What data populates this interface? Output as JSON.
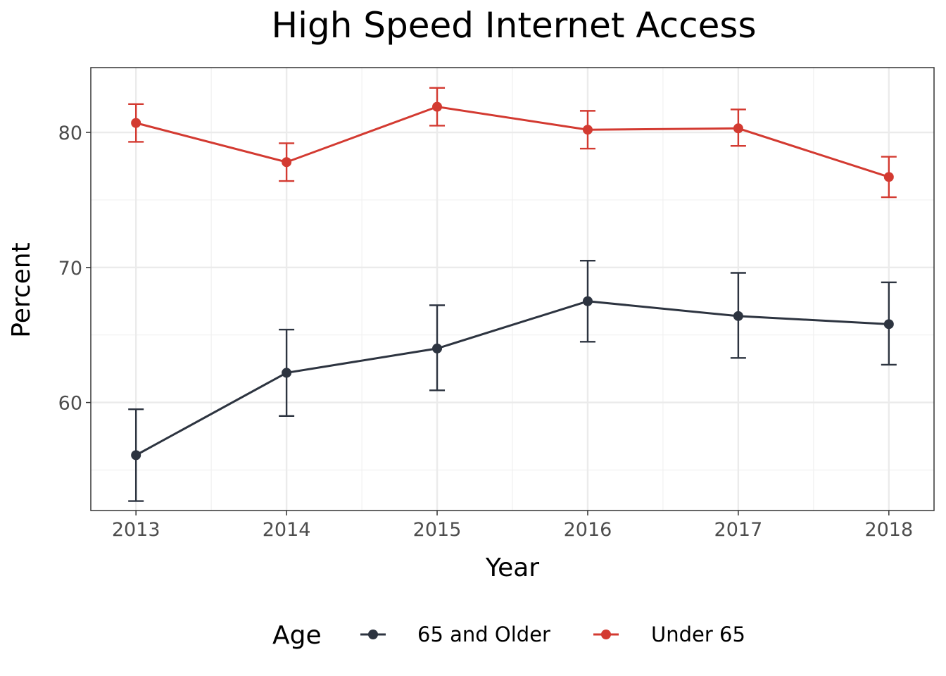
{
  "chart_data": {
    "type": "line",
    "title": "High Speed Internet Access",
    "xlabel": "Year",
    "ylabel": "Percent",
    "x": [
      2013,
      2014,
      2015,
      2016,
      2017,
      2018
    ],
    "x_tick_labels": [
      "2013",
      "2014",
      "2015",
      "2016",
      "2017",
      "2018"
    ],
    "y_ticks": [
      60,
      70,
      80
    ],
    "y_tick_labels": [
      "60",
      "70",
      "80"
    ],
    "xlim": [
      2012.7,
      2018.3
    ],
    "ylim": [
      52.0,
      84.8
    ],
    "grid": true,
    "legend": {
      "title": "Age",
      "placement": "bottom"
    },
    "series": [
      {
        "name": "65 and Older",
        "color": "#2d3440",
        "values": [
          56.1,
          62.2,
          64.0,
          67.5,
          66.4,
          65.8
        ],
        "error_low": [
          52.7,
          59.0,
          60.9,
          64.5,
          63.3,
          62.8
        ],
        "error_high": [
          59.5,
          65.4,
          67.2,
          70.5,
          69.6,
          68.9
        ]
      },
      {
        "name": "Under 65",
        "color": "#d33a31",
        "values": [
          80.7,
          77.8,
          81.9,
          80.2,
          80.3,
          76.7
        ],
        "error_low": [
          79.3,
          76.4,
          80.5,
          78.8,
          79.0,
          75.2
        ],
        "error_high": [
          82.1,
          79.2,
          83.3,
          81.6,
          81.7,
          78.2
        ]
      }
    ]
  }
}
